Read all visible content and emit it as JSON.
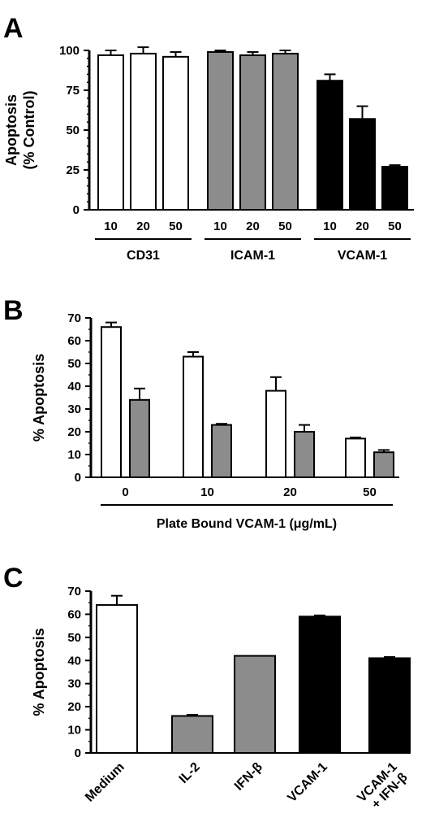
{
  "colors": {
    "open": "#ffffff",
    "gray": "#8c8c8c",
    "black": "#000000"
  },
  "chart_data": [
    {
      "panel": "A",
      "type": "bar",
      "ylabel_lines": [
        "Apoptosis",
        "(% Control)"
      ],
      "ylim": [
        0,
        100
      ],
      "yticks": [
        0,
        25,
        50,
        75,
        100
      ],
      "groups": [
        {
          "name": "CD31",
          "fill": "open",
          "categories": [
            "10",
            "20",
            "50"
          ],
          "values": [
            97,
            98,
            96
          ],
          "errors": [
            3,
            4,
            3
          ]
        },
        {
          "name": "ICAM-1",
          "fill": "gray",
          "categories": [
            "10",
            "20",
            "50"
          ],
          "values": [
            99,
            97,
            98
          ],
          "errors": [
            1,
            2,
            2
          ]
        },
        {
          "name": "VCAM-1",
          "fill": "black",
          "categories": [
            "10",
            "20",
            "50"
          ],
          "values": [
            81,
            57,
            27
          ],
          "errors": [
            4,
            8,
            1
          ]
        }
      ]
    },
    {
      "panel": "B",
      "type": "bar",
      "ylabel": "% Apoptosis",
      "xlabel": "Plate Bound VCAM-1 (μg/mL)",
      "ylim": [
        0,
        70
      ],
      "yticks": [
        0,
        10,
        20,
        30,
        40,
        50,
        60,
        70
      ],
      "categories": [
        "0",
        "10",
        "20",
        "50"
      ],
      "series": [
        {
          "fill": "open",
          "values": [
            66,
            53,
            38,
            17
          ],
          "errors": [
            2,
            2,
            6,
            0.5
          ]
        },
        {
          "fill": "gray",
          "values": [
            34,
            23,
            20,
            11
          ],
          "errors": [
            5,
            0.5,
            3,
            1
          ]
        }
      ]
    },
    {
      "panel": "C",
      "type": "bar",
      "ylabel": "% Apoptosis",
      "ylim": [
        0,
        70
      ],
      "yticks": [
        0,
        10,
        20,
        30,
        40,
        50,
        60,
        70
      ],
      "categories": [
        "Medium",
        "IL-2",
        "IFN-β",
        "VCAM-1",
        "VCAM-1\n+ IFN-β"
      ],
      "values": [
        64,
        16,
        42,
        59,
        41
      ],
      "errors": [
        4,
        0.5,
        0,
        0.5,
        0.5
      ],
      "fills": [
        "open",
        "gray",
        "gray",
        "black",
        "black"
      ]
    }
  ]
}
